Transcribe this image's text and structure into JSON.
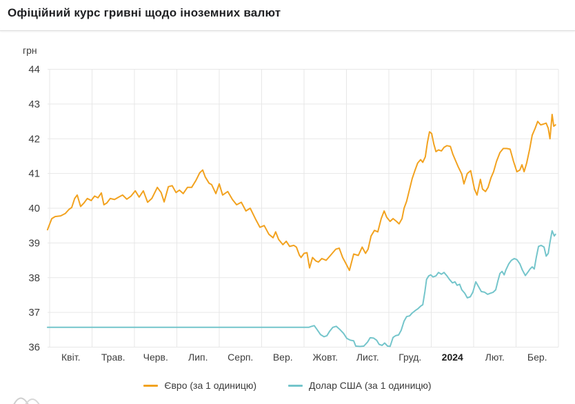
{
  "page": {
    "title": "Офіційний курс гривні щодо іноземних валют"
  },
  "colors": {
    "grid": "#e7e7e7",
    "axis_text": "#3d3d3d",
    "bold_tick_text": "#1c1c1c",
    "title_text": "#202124",
    "divider": "#dcdcdc",
    "decoration": "#cfcfcf",
    "euro_line": "#f2a21f",
    "usd_line": "#74c5cb"
  },
  "chart_data": {
    "type": "line",
    "title": "Офіційний курс гривні щодо іноземних валют",
    "ylabel": "грн",
    "xlabel": "",
    "ylim": [
      36,
      44
    ],
    "y_ticks": [
      44,
      43,
      42,
      41,
      40,
      39,
      38,
      37,
      36
    ],
    "x_tick_labels": [
      "Квіт.",
      "Трав.",
      "Черв.",
      "Лип.",
      "Серп.",
      "Вер.",
      "Жовт.",
      "Лист.",
      "Груд.",
      "2024",
      "Лют.",
      "Бер."
    ],
    "bold_x_tick": "2024",
    "grid": true,
    "legend_position": "bottom",
    "x_unit": "months from 2023-04-01, fractional",
    "series": [
      {
        "id": "euro",
        "name": "Євро (за 1 одиницю)",
        "color": "#f2a21f",
        "points": [
          [
            -0.05,
            39.38
          ],
          [
            0.05,
            39.7
          ],
          [
            0.13,
            39.76
          ],
          [
            0.26,
            39.78
          ],
          [
            0.37,
            39.85
          ],
          [
            0.46,
            39.97
          ],
          [
            0.52,
            40.02
          ],
          [
            0.59,
            40.28
          ],
          [
            0.65,
            40.38
          ],
          [
            0.73,
            40.05
          ],
          [
            0.81,
            40.15
          ],
          [
            0.89,
            40.28
          ],
          [
            0.98,
            40.22
          ],
          [
            1.06,
            40.35
          ],
          [
            1.14,
            40.3
          ],
          [
            1.22,
            40.44
          ],
          [
            1.28,
            40.1
          ],
          [
            1.35,
            40.15
          ],
          [
            1.43,
            40.28
          ],
          [
            1.53,
            40.25
          ],
          [
            1.63,
            40.32
          ],
          [
            1.72,
            40.38
          ],
          [
            1.82,
            40.26
          ],
          [
            1.92,
            40.35
          ],
          [
            2.02,
            40.5
          ],
          [
            2.11,
            40.32
          ],
          [
            2.21,
            40.5
          ],
          [
            2.31,
            40.17
          ],
          [
            2.41,
            40.28
          ],
          [
            2.54,
            40.6
          ],
          [
            2.63,
            40.45
          ],
          [
            2.7,
            40.18
          ],
          [
            2.8,
            40.62
          ],
          [
            2.89,
            40.65
          ],
          [
            2.98,
            40.45
          ],
          [
            3.06,
            40.52
          ],
          [
            3.15,
            40.42
          ],
          [
            3.25,
            40.6
          ],
          [
            3.35,
            40.6
          ],
          [
            3.45,
            40.8
          ],
          [
            3.54,
            41.02
          ],
          [
            3.61,
            41.1
          ],
          [
            3.67,
            40.9
          ],
          [
            3.76,
            40.72
          ],
          [
            3.82,
            40.68
          ],
          [
            3.92,
            40.42
          ],
          [
            4.0,
            40.7
          ],
          [
            4.08,
            40.38
          ],
          [
            4.2,
            40.48
          ],
          [
            4.31,
            40.25
          ],
          [
            4.41,
            40.1
          ],
          [
            4.52,
            40.17
          ],
          [
            4.63,
            39.92
          ],
          [
            4.73,
            40.0
          ],
          [
            4.85,
            39.7
          ],
          [
            4.96,
            39.45
          ],
          [
            5.06,
            39.5
          ],
          [
            5.17,
            39.25
          ],
          [
            5.27,
            39.15
          ],
          [
            5.33,
            39.32
          ],
          [
            5.4,
            39.1
          ],
          [
            5.5,
            38.95
          ],
          [
            5.58,
            39.05
          ],
          [
            5.66,
            38.9
          ],
          [
            5.76,
            38.93
          ],
          [
            5.82,
            38.88
          ],
          [
            5.89,
            38.65
          ],
          [
            5.93,
            38.58
          ],
          [
            6.0,
            38.7
          ],
          [
            6.07,
            38.72
          ],
          [
            6.13,
            38.28
          ],
          [
            6.2,
            38.58
          ],
          [
            6.28,
            38.48
          ],
          [
            6.34,
            38.45
          ],
          [
            6.42,
            38.55
          ],
          [
            6.52,
            38.5
          ],
          [
            6.63,
            38.65
          ],
          [
            6.75,
            38.82
          ],
          [
            6.83,
            38.85
          ],
          [
            6.91,
            38.58
          ],
          [
            6.99,
            38.4
          ],
          [
            7.07,
            38.21
          ],
          [
            7.17,
            38.68
          ],
          [
            7.28,
            38.64
          ],
          [
            7.37,
            38.88
          ],
          [
            7.45,
            38.7
          ],
          [
            7.51,
            38.82
          ],
          [
            7.58,
            39.2
          ],
          [
            7.66,
            39.36
          ],
          [
            7.74,
            39.32
          ],
          [
            7.82,
            39.7
          ],
          [
            7.89,
            39.92
          ],
          [
            7.95,
            39.74
          ],
          [
            8.03,
            39.62
          ],
          [
            8.1,
            39.7
          ],
          [
            8.18,
            39.62
          ],
          [
            8.24,
            39.55
          ],
          [
            8.31,
            39.7
          ],
          [
            8.36,
            40.0
          ],
          [
            8.42,
            40.2
          ],
          [
            8.49,
            40.55
          ],
          [
            8.55,
            40.85
          ],
          [
            8.62,
            41.1
          ],
          [
            8.68,
            41.3
          ],
          [
            8.75,
            41.4
          ],
          [
            8.8,
            41.32
          ],
          [
            8.86,
            41.48
          ],
          [
            8.91,
            41.9
          ],
          [
            8.96,
            42.2
          ],
          [
            9.01,
            42.15
          ],
          [
            9.06,
            41.85
          ],
          [
            9.11,
            41.63
          ],
          [
            9.17,
            41.68
          ],
          [
            9.24,
            41.65
          ],
          [
            9.3,
            41.75
          ],
          [
            9.37,
            41.8
          ],
          [
            9.45,
            41.78
          ],
          [
            9.51,
            41.55
          ],
          [
            9.58,
            41.35
          ],
          [
            9.64,
            41.18
          ],
          [
            9.72,
            40.98
          ],
          [
            9.77,
            40.7
          ],
          [
            9.85,
            41.0
          ],
          [
            9.93,
            41.08
          ],
          [
            10.02,
            40.55
          ],
          [
            10.08,
            40.38
          ],
          [
            10.16,
            40.83
          ],
          [
            10.21,
            40.55
          ],
          [
            10.28,
            40.48
          ],
          [
            10.34,
            40.6
          ],
          [
            10.41,
            40.88
          ],
          [
            10.47,
            41.05
          ],
          [
            10.54,
            41.35
          ],
          [
            10.62,
            41.6
          ],
          [
            10.7,
            41.72
          ],
          [
            10.78,
            41.72
          ],
          [
            10.86,
            41.7
          ],
          [
            10.94,
            41.35
          ],
          [
            11.02,
            41.05
          ],
          [
            11.09,
            41.1
          ],
          [
            11.14,
            41.25
          ],
          [
            11.19,
            41.05
          ],
          [
            11.25,
            41.3
          ],
          [
            11.32,
            41.7
          ],
          [
            11.38,
            42.1
          ],
          [
            11.45,
            42.3
          ],
          [
            11.51,
            42.5
          ],
          [
            11.58,
            42.4
          ],
          [
            11.64,
            42.42
          ],
          [
            11.71,
            42.45
          ],
          [
            11.76,
            42.3
          ],
          [
            11.8,
            42.0
          ],
          [
            11.85,
            42.7
          ],
          [
            11.89,
            42.36
          ],
          [
            11.93,
            42.4
          ]
        ]
      },
      {
        "id": "usd",
        "name": "Долар США (за 1 одиницю)",
        "color": "#74c5cb",
        "points": [
          [
            -0.05,
            36.57
          ],
          [
            2.0,
            36.57
          ],
          [
            4.0,
            36.57
          ],
          [
            5.98,
            36.57
          ],
          [
            6.11,
            36.57
          ],
          [
            6.18,
            36.6
          ],
          [
            6.24,
            36.62
          ],
          [
            6.31,
            36.5
          ],
          [
            6.39,
            36.36
          ],
          [
            6.47,
            36.3
          ],
          [
            6.54,
            36.33
          ],
          [
            6.6,
            36.45
          ],
          [
            6.68,
            36.57
          ],
          [
            6.76,
            36.6
          ],
          [
            6.85,
            36.5
          ],
          [
            6.93,
            36.4
          ],
          [
            7.01,
            36.25
          ],
          [
            7.09,
            36.2
          ],
          [
            7.17,
            36.18
          ],
          [
            7.22,
            36.03
          ],
          [
            7.32,
            36.02
          ],
          [
            7.41,
            36.03
          ],
          [
            7.5,
            36.15
          ],
          [
            7.56,
            36.27
          ],
          [
            7.64,
            36.26
          ],
          [
            7.71,
            36.2
          ],
          [
            7.77,
            36.08
          ],
          [
            7.84,
            36.05
          ],
          [
            7.9,
            36.12
          ],
          [
            7.97,
            36.03
          ],
          [
            8.03,
            36.02
          ],
          [
            8.1,
            36.28
          ],
          [
            8.16,
            36.33
          ],
          [
            8.23,
            36.35
          ],
          [
            8.29,
            36.48
          ],
          [
            8.36,
            36.75
          ],
          [
            8.42,
            36.88
          ],
          [
            8.49,
            36.9
          ],
          [
            8.55,
            36.98
          ],
          [
            8.62,
            37.05
          ],
          [
            8.68,
            37.1
          ],
          [
            8.75,
            37.18
          ],
          [
            8.8,
            37.22
          ],
          [
            8.85,
            37.6
          ],
          [
            8.89,
            37.95
          ],
          [
            8.94,
            38.05
          ],
          [
            8.99,
            38.08
          ],
          [
            9.04,
            38.02
          ],
          [
            9.11,
            38.05
          ],
          [
            9.17,
            38.15
          ],
          [
            9.24,
            38.1
          ],
          [
            9.3,
            38.15
          ],
          [
            9.37,
            38.05
          ],
          [
            9.43,
            37.95
          ],
          [
            9.5,
            37.85
          ],
          [
            9.56,
            37.88
          ],
          [
            9.61,
            37.78
          ],
          [
            9.67,
            37.81
          ],
          [
            9.72,
            37.65
          ],
          [
            9.79,
            37.55
          ],
          [
            9.85,
            37.42
          ],
          [
            9.92,
            37.45
          ],
          [
            9.98,
            37.58
          ],
          [
            10.05,
            37.88
          ],
          [
            10.11,
            37.75
          ],
          [
            10.18,
            37.6
          ],
          [
            10.26,
            37.58
          ],
          [
            10.33,
            37.52
          ],
          [
            10.39,
            37.55
          ],
          [
            10.46,
            37.58
          ],
          [
            10.52,
            37.65
          ],
          [
            10.57,
            37.9
          ],
          [
            10.62,
            38.12
          ],
          [
            10.67,
            38.18
          ],
          [
            10.72,
            38.08
          ],
          [
            10.76,
            38.22
          ],
          [
            10.83,
            38.4
          ],
          [
            10.89,
            38.5
          ],
          [
            10.96,
            38.55
          ],
          [
            11.02,
            38.52
          ],
          [
            11.09,
            38.4
          ],
          [
            11.15,
            38.22
          ],
          [
            11.22,
            38.06
          ],
          [
            11.28,
            38.16
          ],
          [
            11.33,
            38.25
          ],
          [
            11.38,
            38.31
          ],
          [
            11.43,
            38.25
          ],
          [
            11.48,
            38.6
          ],
          [
            11.53,
            38.9
          ],
          [
            11.59,
            38.93
          ],
          [
            11.66,
            38.88
          ],
          [
            11.71,
            38.62
          ],
          [
            11.76,
            38.7
          ],
          [
            11.8,
            39.02
          ],
          [
            11.85,
            39.35
          ],
          [
            11.9,
            39.2
          ],
          [
            11.93,
            39.25
          ]
        ]
      }
    ]
  }
}
